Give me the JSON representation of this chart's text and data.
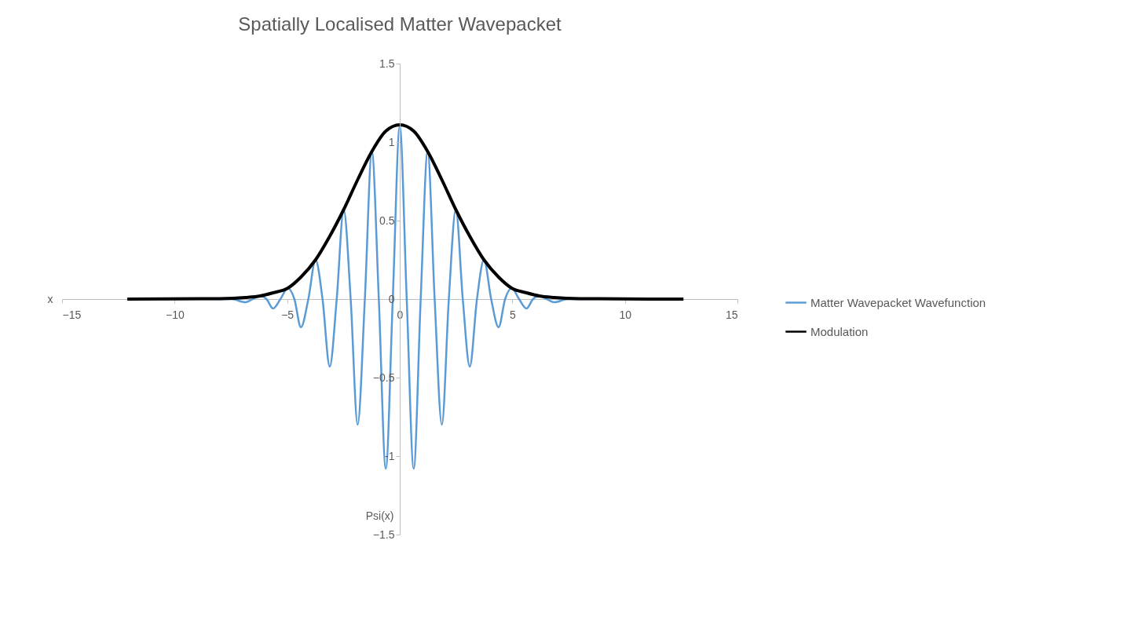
{
  "chart_data": {
    "type": "line",
    "title": "Spatially Localised Matter Wavepacket",
    "xlabel": "x",
    "ylabel": "Psi(x)",
    "xlim": [
      -15,
      15
    ],
    "xticks": [
      -15,
      -10,
      -5,
      0,
      5,
      10,
      15
    ],
    "ylim": [
      -1.5,
      1.5
    ],
    "yticks": [
      -1.5,
      {
        "value": -1,
        "label": "-1"
      },
      -0.5,
      {
        "value": 0,
        "label": "0"
      },
      0.5,
      {
        "value": 1,
        "label": "1"
      },
      1.5
    ],
    "grid": false,
    "legend": "right",
    "marker": "none",
    "line_style": "solid",
    "series": [
      {
        "name": "Matter Wavepacket Wavefunction",
        "color": "#5b9bd5",
        "x": [
          -12.1,
          -7.47,
          -6.86,
          -6.53,
          -6.2,
          -5.92,
          -5.63,
          -5.3,
          -4.97,
          -4.68,
          -4.39,
          -4.06,
          -3.74,
          -3.43,
          -3.11,
          -2.8,
          -2.49,
          -2.18,
          -1.87,
          -1.55,
          -1.24,
          -0.93,
          -0.62,
          -0.31,
          0,
          0.31,
          0.62,
          0.93,
          1.24,
          1.55,
          1.87,
          2.18,
          2.49,
          2.8,
          3.11,
          3.43,
          3.74,
          4.06,
          4.39,
          4.68,
          4.97,
          5.3,
          5.63,
          5.92,
          6.2,
          6.53,
          6.86,
          7.47,
          12.6
        ],
        "values": [
          0,
          0,
          -0.02,
          0,
          0.02,
          0,
          -0.06,
          0,
          0.07,
          0,
          -0.18,
          0,
          0.25,
          0,
          -0.43,
          0,
          0.57,
          0,
          -0.8,
          0,
          0.94,
          0,
          -1.08,
          0,
          1.1,
          0,
          -1.08,
          0,
          0.94,
          0,
          -0.8,
          0,
          0.57,
          0,
          -0.43,
          0,
          0.25,
          0,
          -0.18,
          0,
          0.07,
          0,
          -0.06,
          0,
          0.02,
          0,
          -0.02,
          0,
          0
        ]
      },
      {
        "name": "Modulation",
        "color": "#000000",
        "x": [
          -12.1,
          -8,
          -6.86,
          -6.2,
          -5.63,
          -4.97,
          -4.39,
          -3.74,
          -3.11,
          -2.49,
          -1.87,
          -1.24,
          -0.62,
          0,
          0.62,
          1.24,
          1.87,
          2.49,
          3.11,
          3.74,
          4.39,
          4.97,
          5.63,
          6.2,
          6.86,
          8,
          12.6
        ],
        "values": [
          0,
          0.003,
          0.01,
          0.02,
          0.04,
          0.07,
          0.14,
          0.25,
          0.4,
          0.57,
          0.76,
          0.94,
          1.07,
          1.11,
          1.07,
          0.94,
          0.76,
          0.57,
          0.4,
          0.25,
          0.14,
          0.07,
          0.04,
          0.02,
          0.01,
          0.003,
          0
        ]
      }
    ]
  }
}
